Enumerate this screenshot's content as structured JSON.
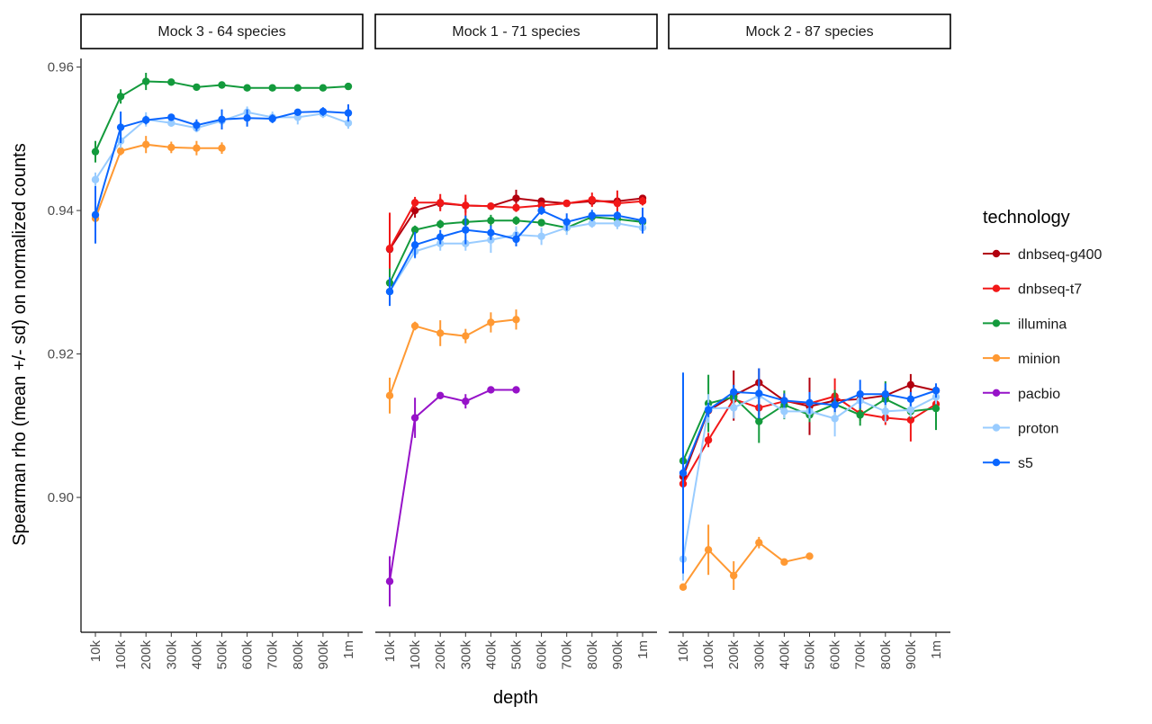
{
  "chart_data": {
    "type": "line",
    "xlabel": "depth",
    "ylabel": "Spearman rho (mean +/- sd) on normalized counts",
    "ylim": [
      0.8812,
      0.9612
    ],
    "yticks": [
      "0.90",
      "0.92",
      "0.94",
      "0.96"
    ],
    "ytick_values": [
      0.9,
      0.92,
      0.94,
      0.96
    ],
    "categories": [
      "10k",
      "100k",
      "200k",
      "300k",
      "400k",
      "500k",
      "600k",
      "700k",
      "800k",
      "900k",
      "1m"
    ],
    "grid": false,
    "legend": {
      "title": "technology",
      "placement": "right"
    },
    "colors": {
      "dnbseq-g400": "#b2000f",
      "dnbseq-t7": "#f21818",
      "illumina": "#139a3c",
      "minion": "#ff9933",
      "pacbio": "#9612c8",
      "proton": "#99ccff",
      "s5": "#0a66ff"
    },
    "legend_order": [
      "dnbseq-g400",
      "dnbseq-t7",
      "illumina",
      "minion",
      "pacbio",
      "proton",
      "s5"
    ],
    "panels": [
      {
        "title": "Mock 3 - 64 species",
        "series": [
          {
            "name": "illumina",
            "values": [
              0.9482,
              0.9559,
              0.958,
              0.9579,
              0.9572,
              0.9575,
              0.9571,
              0.9571,
              0.9571,
              0.9571,
              0.9573
            ],
            "sd": [
              0.0015,
              0.001,
              0.0012,
              0.0003,
              0.0003,
              0.0004,
              0.0003,
              0.0003,
              0.0003,
              0.0003,
              0.0003
            ]
          },
          {
            "name": "minion",
            "values": [
              0.9389,
              0.9483,
              0.9492,
              0.9488,
              0.9487,
              0.9487
            ],
            "sd": [
              0.002,
              0.0006,
              0.0012,
              0.0008,
              0.001,
              0.0008
            ]
          },
          {
            "name": "proton",
            "values": [
              0.9443,
              0.9497,
              0.9527,
              0.9522,
              0.9515,
              0.9525,
              0.9537,
              0.953,
              0.953,
              0.9535,
              0.9522
            ],
            "sd": [
              0.001,
              0.001,
              0.001,
              0.0005,
              0.0006,
              0.0008,
              0.0008,
              0.0008,
              0.001,
              0.0006,
              0.0008
            ]
          },
          {
            "name": "s5",
            "values": [
              0.9394,
              0.9516,
              0.9526,
              0.953,
              0.9519,
              0.9527,
              0.9529,
              0.9528,
              0.9537,
              0.9538,
              0.9536
            ],
            "sd": [
              0.004,
              0.0022,
              0.0006,
              0.0005,
              0.0008,
              0.0014,
              0.0012,
              0.0006,
              0.0004,
              0.0006,
              0.0012
            ]
          }
        ]
      },
      {
        "title": "Mock 1 - 71 species",
        "series": [
          {
            "name": "dnbseq-g400",
            "values": [
              0.9346,
              0.94,
              0.941,
              0.9407,
              0.9406,
              0.9417,
              0.9413,
              0.941,
              0.9413,
              0.9413,
              0.9417
            ],
            "sd": [
              0.001,
              0.001,
              0.0008,
              0.001,
              0.0004,
              0.0012,
              0.0004,
              0.0004,
              0.0006,
              0.0004,
              0.0004
            ]
          },
          {
            "name": "dnbseq-t7",
            "values": [
              0.9347,
              0.9411,
              0.9411,
              0.9407,
              0.9406,
              0.9404,
              0.9407,
              0.941,
              0.9415,
              0.941,
              0.9413
            ],
            "sd": [
              0.005,
              0.0008,
              0.0012,
              0.0015,
              0.0004,
              0.0006,
              0.0004,
              0.0004,
              0.001,
              0.0018,
              0.0006
            ]
          },
          {
            "name": "illumina",
            "values": [
              0.9299,
              0.9373,
              0.9381,
              0.9384,
              0.9386,
              0.9386,
              0.9383,
              0.9376,
              0.9391,
              0.9388,
              0.9384
            ],
            "sd": [
              0.002,
              0.0006,
              0.0006,
              0.0008,
              0.0008,
              0.0006,
              0.0004,
              0.0006,
              0.0006,
              0.0008,
              0.0006
            ]
          },
          {
            "name": "minion",
            "values": [
              0.9142,
              0.9239,
              0.9229,
              0.9225,
              0.9244,
              0.9248
            ],
            "sd": [
              0.0025,
              0.0006,
              0.0018,
              0.001,
              0.0014,
              0.0014
            ]
          },
          {
            "name": "pacbio",
            "values": [
              0.8883,
              0.9111,
              0.9142,
              0.9134,
              0.915,
              0.915
            ],
            "sd": [
              0.0035,
              0.0028,
              0.0004,
              0.001,
              0.0003,
              0.0003
            ]
          },
          {
            "name": "proton",
            "values": [
              0.9287,
              0.9343,
              0.9354,
              0.9354,
              0.9359,
              0.9366,
              0.9364,
              0.9376,
              0.9382,
              0.9382,
              0.9376
            ],
            "sd": [
              0.001,
              0.001,
              0.001,
              0.001,
              0.0018,
              0.0012,
              0.0012,
              0.001,
              0.0006,
              0.0008,
              0.0008
            ]
          },
          {
            "name": "s5",
            "values": [
              0.9287,
              0.9352,
              0.9363,
              0.9373,
              0.9369,
              0.936,
              0.94,
              0.9384,
              0.9393,
              0.9393,
              0.9386
            ],
            "sd": [
              0.002,
              0.0018,
              0.001,
              0.002,
              0.001,
              0.001,
              0.0006,
              0.0012,
              0.0008,
              0.0006,
              0.0018
            ]
          }
        ]
      },
      {
        "title": "Mock 2 - 87 species",
        "series": [
          {
            "name": "dnbseq-g400",
            "values": [
              0.9029,
              0.9121,
              0.9142,
              0.916,
              0.9135,
              0.9127,
              0.9135,
              0.9137,
              0.9142,
              0.9157,
              0.9149
            ],
            "sd": [
              0.01,
              0.001,
              0.0035,
              0.002,
              0.001,
              0.004,
              0.001,
              0.001,
              0.001,
              0.0015,
              0.0008
            ]
          },
          {
            "name": "dnbseq-t7",
            "values": [
              0.9019,
              0.908,
              0.9137,
              0.9125,
              0.9134,
              0.9131,
              0.9141,
              0.9117,
              0.9111,
              0.9108,
              0.913
            ],
            "sd": [
              0.007,
              0.001,
              0.001,
              0.001,
              0.001,
              0.001,
              0.0025,
              0.001,
              0.001,
              0.003,
              0.001
            ]
          },
          {
            "name": "illumina",
            "values": [
              0.9051,
              0.9131,
              0.914,
              0.9106,
              0.9129,
              0.9115,
              0.913,
              0.9115,
              0.9137,
              0.912,
              0.9124
            ],
            "sd": [
              0.003,
              0.004,
              0.001,
              0.003,
              0.002,
              0.001,
              0.002,
              0.0015,
              0.0025,
              0.001,
              0.003
            ]
          },
          {
            "name": "minion",
            "values": [
              0.8875,
              0.8927,
              0.8891,
              0.8937,
              0.891,
              0.8918
            ],
            "sd": [
              0.0003,
              0.0035,
              0.002,
              0.0008,
              0.0004,
              0.0003
            ]
          },
          {
            "name": "proton",
            "values": [
              0.8914,
              0.9124,
              0.9125,
              0.9142,
              0.912,
              0.912,
              0.911,
              0.9135,
              0.912,
              0.9122,
              0.914
            ],
            "sd": [
              0.003,
              0.002,
              0.0015,
              0.002,
              0.001,
              0.001,
              0.0025,
              0.001,
              0.0015,
              0.001,
              0.001
            ]
          },
          {
            "name": "s5",
            "values": [
              0.9034,
              0.9122,
              0.9147,
              0.9145,
              0.9135,
              0.9132,
              0.9129,
              0.9144,
              0.9144,
              0.9137,
              0.9149
            ],
            "sd": [
              0.014,
              0.001,
              0.001,
              0.0035,
              0.001,
              0.0015,
              0.001,
              0.002,
              0.0015,
              0.001,
              0.001
            ]
          }
        ]
      }
    ]
  }
}
